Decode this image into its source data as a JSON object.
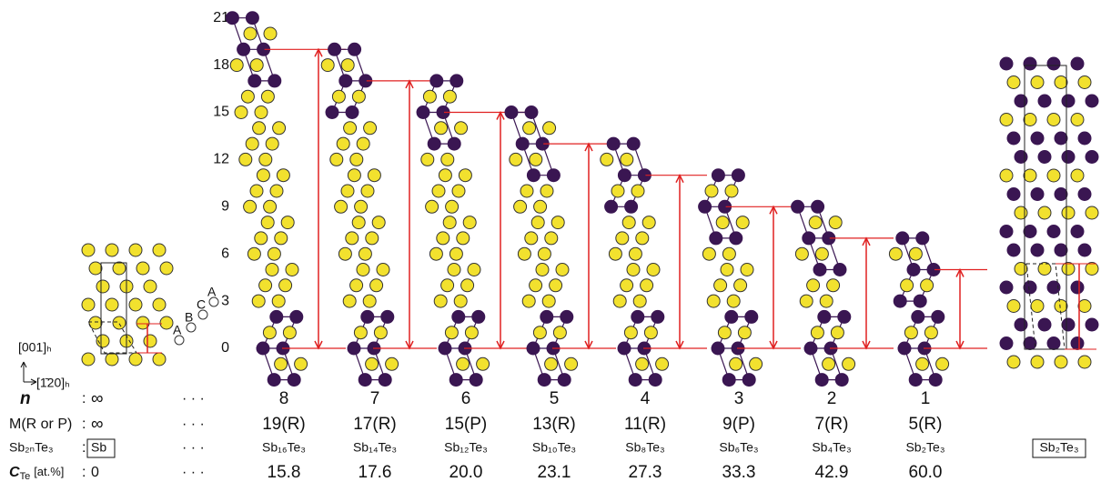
{
  "y_axis": {
    "ticks": [
      0,
      3,
      6,
      9,
      12,
      15,
      18,
      21
    ]
  },
  "row_labels": {
    "n": "n",
    "M": "M(R or P)",
    "formula": "Sb₂ₙTe₃",
    "cte": {
      "main": "C",
      "sub": "Te",
      "rest": "[at.%]"
    }
  },
  "separator": ":",
  "ellipsis": "· · ·",
  "sb_end": {
    "n": "∞",
    "M": "∞",
    "formula": "Sb",
    "cte": "0"
  },
  "sb2te3_end": {
    "formula": "Sb₂Te₃"
  },
  "directions": {
    "c": "[001]ₕ",
    "a": "[1̄20]ₕ"
  },
  "stacking": [
    "A",
    "B",
    "C",
    "A"
  ],
  "columns": [
    {
      "n": 8,
      "M": {
        "value": 19,
        "label": "19(R)"
      },
      "formula": "Sb₁₆Te₃",
      "cte": "15.8"
    },
    {
      "n": 7,
      "M": {
        "value": 17,
        "label": "17(R)"
      },
      "formula": "Sb₁₄Te₃",
      "cte": "17.6"
    },
    {
      "n": 6,
      "M": {
        "value": 15,
        "label": "15(P)"
      },
      "formula": "Sb₁₂Te₃",
      "cte": "20.0"
    },
    {
      "n": 5,
      "M": {
        "value": 13,
        "label": "13(R)"
      },
      "formula": "Sb₁₀Te₃",
      "cte": "23.1"
    },
    {
      "n": 4,
      "M": {
        "value": 11,
        "label": "11(R)"
      },
      "formula": "Sb₈Te₃",
      "cte": "27.3"
    },
    {
      "n": 3,
      "M": {
        "value": 9,
        "label": "9(P)"
      },
      "formula": "Sb₆Te₃",
      "cte": "33.3"
    },
    {
      "n": 2,
      "M": {
        "value": 7,
        "label": "7(R)"
      },
      "formula": "Sb₄Te₃",
      "cte": "42.9"
    },
    {
      "n": 1,
      "M": {
        "value": 5,
        "label": "5(R)"
      },
      "formula": "Sb₂Te₃",
      "cte": "60.0"
    }
  ]
}
